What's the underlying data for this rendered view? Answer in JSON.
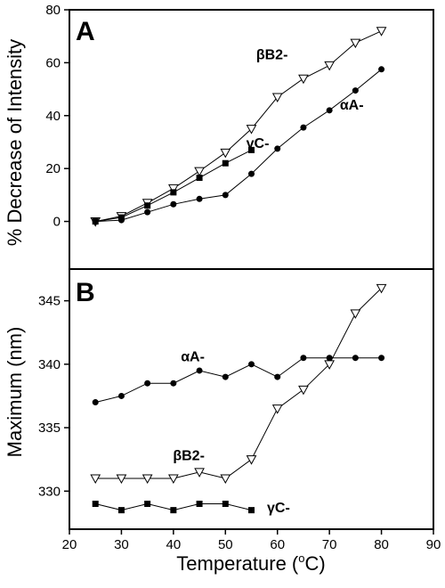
{
  "figure": {
    "x_title_prefix": "Temperature (",
    "x_title_sup": "o",
    "x_title_suffix": "C)",
    "x_ticks": [
      "20",
      "30",
      "40",
      "50",
      "60",
      "70",
      "80",
      "90"
    ]
  },
  "chart_data": [
    {
      "type": "line",
      "panel": "A",
      "ylabel": "% Decrease of Intensity",
      "xlim": [
        20,
        90
      ],
      "ylim": [
        -18,
        80
      ],
      "y_ticks": [
        0,
        20,
        40,
        60,
        80
      ],
      "series": [
        {
          "name": "βB2-",
          "marker": "triangle-down-open",
          "x": [
            25,
            30,
            35,
            40,
            45,
            50,
            55,
            60,
            65,
            70,
            75,
            80
          ],
          "y": [
            0,
            2,
            7,
            12.5,
            19,
            26,
            35,
            47,
            54,
            59,
            67.5,
            72
          ]
        },
        {
          "name": "αA-",
          "marker": "circle-filled",
          "x": [
            25,
            30,
            35,
            40,
            45,
            50,
            55,
            60,
            65,
            70,
            75,
            80
          ],
          "y": [
            0,
            0.5,
            3.5,
            6.5,
            8.5,
            10,
            18,
            27.5,
            35.5,
            42,
            49.5,
            57.5
          ]
        },
        {
          "name": "γC-",
          "marker": "square-filled",
          "x": [
            25,
            30,
            35,
            40,
            45,
            50,
            55
          ],
          "y": [
            0,
            1.5,
            6,
            11,
            16.5,
            22,
            27
          ]
        }
      ]
    },
    {
      "type": "line",
      "panel": "B",
      "ylabel": "Maximum (nm)",
      "xlim": [
        20,
        90
      ],
      "ylim": [
        327,
        347.5
      ],
      "y_ticks": [
        330,
        335,
        340,
        345
      ],
      "series": [
        {
          "name": "αA-",
          "marker": "circle-filled",
          "x": [
            25,
            30,
            35,
            40,
            45,
            50,
            55,
            60,
            65,
            70,
            75,
            80
          ],
          "y": [
            337,
            337.5,
            338.5,
            338.5,
            339.5,
            339,
            340,
            339,
            340.5,
            340.5,
            340.5,
            340.5
          ]
        },
        {
          "name": "βB2-",
          "marker": "triangle-down-open",
          "x": [
            25,
            30,
            35,
            40,
            45,
            50,
            55,
            60,
            65,
            70,
            75,
            80
          ],
          "y": [
            331,
            331,
            331,
            331,
            331.5,
            331,
            332.5,
            336.5,
            338,
            340,
            344,
            346
          ]
        },
        {
          "name": "γC-",
          "marker": "square-filled",
          "x": [
            25,
            30,
            35,
            40,
            45,
            50,
            55
          ],
          "y": [
            329,
            328.5,
            329,
            328.5,
            329,
            329,
            328.5
          ]
        }
      ]
    }
  ]
}
